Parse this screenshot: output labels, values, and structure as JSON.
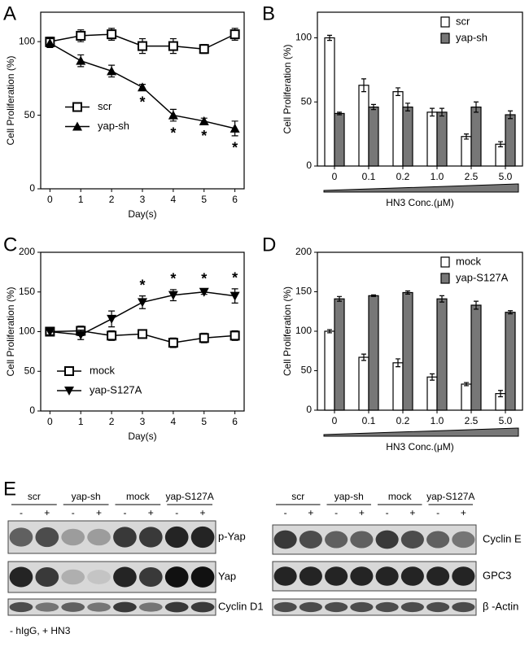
{
  "chart_data": [
    {
      "type": "line",
      "panel": "A",
      "xlabel": "Day(s)",
      "ylabel": "Cell Proliferation (%)",
      "x": [
        0,
        1,
        2,
        3,
        4,
        5,
        6
      ],
      "xlim": [
        -0.3,
        6.3
      ],
      "xticks": [
        0,
        1,
        2,
        3,
        4,
        5,
        6
      ],
      "ylim": [
        0,
        120
      ],
      "yticks": [
        0,
        50,
        100
      ],
      "legend": "center left",
      "series": [
        {
          "name": "scr",
          "color": "#000000",
          "marker": "square-open",
          "values": [
            100,
            104,
            105,
            97,
            97,
            95,
            105
          ],
          "errors": [
            3,
            4,
            4,
            5,
            5,
            3,
            4
          ]
        },
        {
          "name": "yap-sh",
          "color": "#000000",
          "marker": "triangle-up",
          "values": [
            99,
            87,
            80,
            69,
            50,
            46,
            41
          ],
          "errors": [
            3,
            4,
            4,
            2,
            4,
            2,
            5
          ]
        }
      ],
      "annotations": [
        {
          "x": 3,
          "text": "*"
        },
        {
          "x": 4,
          "text": "*"
        },
        {
          "x": 5,
          "text": "*"
        },
        {
          "x": 6,
          "text": "*"
        }
      ]
    },
    {
      "type": "bar",
      "panel": "B",
      "xlabel": "HN3 Conc.(μM)",
      "ylabel": "Cell Proliferation (%)",
      "categories": [
        "0",
        "0.1",
        "0.2",
        "1.0",
        "2.5",
        "5.0"
      ],
      "ylim": [
        0,
        120
      ],
      "yticks": [
        0,
        50,
        100
      ],
      "legend": "upper right",
      "series": [
        {
          "name": "scr",
          "color": "#ffffff",
          "values": [
            100,
            63,
            58,
            42,
            23,
            17
          ],
          "errors": [
            2,
            5,
            3,
            3,
            2,
            2
          ]
        },
        {
          "name": "yap-sh",
          "color": "#777777",
          "values": [
            41,
            46,
            46,
            42,
            46,
            40
          ],
          "errors": [
            1,
            2,
            3,
            3,
            4,
            3
          ]
        }
      ]
    },
    {
      "type": "line",
      "panel": "C",
      "xlabel": "Day(s)",
      "ylabel": "Cell Proliferation (%)",
      "x": [
        0,
        1,
        2,
        3,
        4,
        5,
        6
      ],
      "xlim": [
        -0.3,
        6.3
      ],
      "xticks": [
        0,
        1,
        2,
        3,
        4,
        5,
        6
      ],
      "ylim": [
        0,
        200
      ],
      "yticks": [
        0,
        50,
        100,
        150,
        200
      ],
      "legend": "lower left",
      "series": [
        {
          "name": "mock",
          "color": "#000000",
          "marker": "square-open",
          "values": [
            100,
            101,
            95,
            97,
            86,
            92,
            95
          ],
          "errors": [
            4,
            6,
            6,
            5,
            6,
            6,
            6
          ]
        },
        {
          "name": "yap-S127A",
          "color": "#000000",
          "marker": "triangle-down",
          "values": [
            100,
            96,
            116,
            137,
            146,
            150,
            145
          ],
          "errors": [
            4,
            6,
            10,
            8,
            7,
            3,
            9
          ]
        }
      ],
      "annotations": [
        {
          "x": 3,
          "text": "*"
        },
        {
          "x": 4,
          "text": "*"
        },
        {
          "x": 5,
          "text": "*"
        },
        {
          "x": 6,
          "text": "*"
        }
      ]
    },
    {
      "type": "bar",
      "panel": "D",
      "xlabel": "HN3 Conc.(μM)",
      "ylabel": "Cell Proliferation (%)",
      "categories": [
        "0",
        "0.1",
        "0.2",
        "1.0",
        "2.5",
        "5.0"
      ],
      "ylim": [
        0,
        200
      ],
      "yticks": [
        0,
        50,
        100,
        150,
        200
      ],
      "legend": "upper right",
      "series": [
        {
          "name": "mock",
          "color": "#ffffff",
          "values": [
            100,
            67,
            60,
            42,
            33,
            21
          ],
          "errors": [
            2,
            4,
            5,
            4,
            2,
            4
          ]
        },
        {
          "name": "yap-S127A",
          "color": "#777777",
          "values": [
            141,
            145,
            149,
            141,
            133,
            124
          ],
          "errors": [
            3,
            1,
            2,
            4,
            5,
            2
          ]
        }
      ]
    }
  ],
  "blot": {
    "panel": "E",
    "groups": [
      "scr",
      "yap-sh",
      "mock",
      "yap-S127A"
    ],
    "signs": [
      "-",
      "+"
    ],
    "left_rows": [
      "p-Yap",
      "Yap",
      "Cyclin D1"
    ],
    "right_rows": [
      "Cyclin E",
      "GPC3",
      "β -Actin"
    ],
    "footnote": "- hIgG, + HN3"
  }
}
